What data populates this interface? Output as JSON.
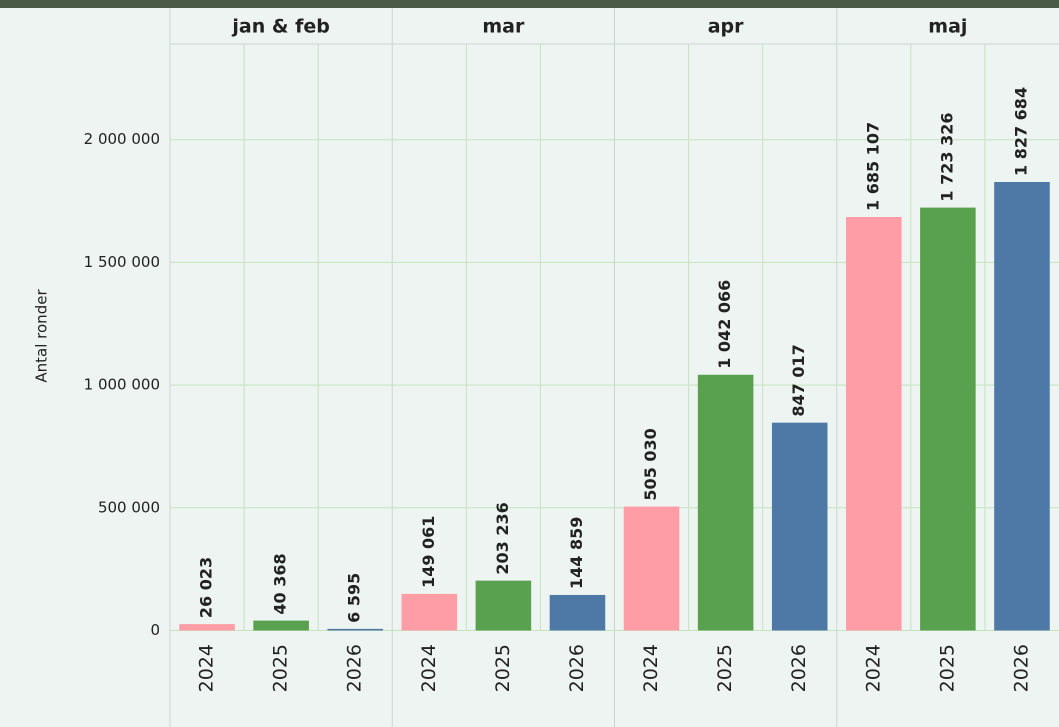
{
  "chart_data": {
    "type": "bar",
    "y_label": "Antal ronder",
    "groups": [
      "jan & feb",
      "mar",
      "apr",
      "maj"
    ],
    "series": [
      {
        "name": "2024",
        "color": "#ff9da7",
        "values": [
          26023,
          149061,
          505030,
          1685107
        ],
        "value_labels": [
          "26 023",
          "149 061",
          "505 030",
          "1 685 107"
        ]
      },
      {
        "name": "2025",
        "color": "#59a14f",
        "values": [
          40368,
          203236,
          1042066,
          1723326
        ],
        "value_labels": [
          "40 368",
          "203 236",
          "1 042 066",
          "1 723 326"
        ]
      },
      {
        "name": "2026",
        "color": "#4e79a7",
        "values": [
          6595,
          144859,
          847017,
          1827684
        ],
        "value_labels": [
          "6 595",
          "144 859",
          "847 017",
          "1 827 684"
        ]
      }
    ],
    "ylim": [
      0,
      2390000
    ],
    "yticks": [
      0,
      {
        "value": 500000,
        "label": "500 000"
      },
      {
        "value": 1000000,
        "label": "1 000 000"
      },
      {
        "value": 1500000,
        "label": "1 500 000"
      },
      {
        "value": 2000000,
        "label": "2 000 000"
      }
    ],
    "grid": true
  }
}
